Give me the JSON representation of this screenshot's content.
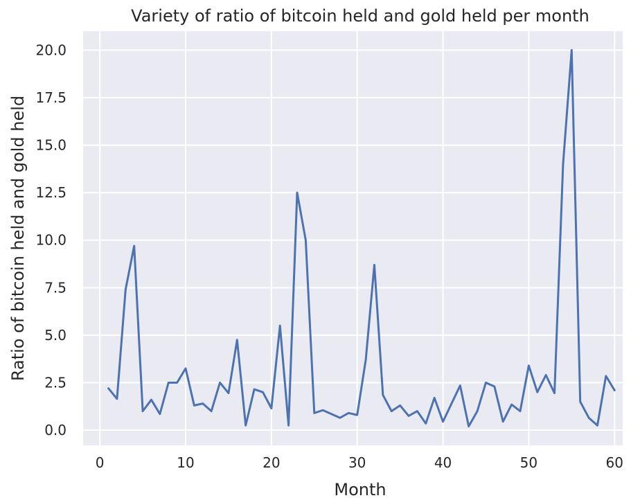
{
  "chart_data": {
    "type": "line",
    "title": "Variety of ratio of bitcoin held and gold held per month",
    "xlabel": "Month",
    "ylabel": "Ratio of bitcoin held and gold held",
    "xlim": [
      -1.95,
      60.95
    ],
    "ylim": [
      -0.8,
      21.0
    ],
    "xticks": [
      0,
      10,
      20,
      30,
      40,
      50,
      60
    ],
    "yticks": [
      0.0,
      2.5,
      5.0,
      7.5,
      10.0,
      12.5,
      15.0,
      17.5,
      20.0
    ],
    "xtick_labels": [
      "0",
      "10",
      "20",
      "30",
      "40",
      "50",
      "60"
    ],
    "ytick_labels": [
      "0.0",
      "2.5",
      "5.0",
      "7.5",
      "10.0",
      "12.5",
      "15.0",
      "17.5",
      "20.0"
    ],
    "grid": true,
    "background": "#eaeaf2",
    "line_color": "#4c72b0",
    "series": [
      {
        "x": [
          1,
          2,
          3,
          4,
          5,
          6,
          7,
          8,
          9,
          10,
          11,
          12,
          13,
          14,
          15,
          16,
          17,
          18,
          19,
          20,
          21,
          22,
          23,
          24,
          25,
          26,
          27,
          28,
          29,
          30,
          31,
          32,
          33,
          34,
          35,
          36,
          37,
          38,
          39,
          40,
          41,
          42,
          43,
          44,
          45,
          46,
          47,
          48,
          49,
          50,
          51,
          52,
          53,
          54,
          55,
          56,
          57,
          58,
          59,
          60
        ],
        "values": [
          2.2,
          1.65,
          7.4,
          9.7,
          1.0,
          1.6,
          0.85,
          2.5,
          2.5,
          3.25,
          1.3,
          1.4,
          1.0,
          2.5,
          1.95,
          4.75,
          0.25,
          2.15,
          2.0,
          1.15,
          5.5,
          0.25,
          12.5,
          10.0,
          0.9,
          1.05,
          0.85,
          0.65,
          0.9,
          0.8,
          3.7,
          8.7,
          1.85,
          1.0,
          1.3,
          0.75,
          1.0,
          0.35,
          1.7,
          0.45,
          1.4,
          2.35,
          0.2,
          1.0,
          2.5,
          2.3,
          0.45,
          1.35,
          1.0,
          3.4,
          2.0,
          2.9,
          1.95,
          14.0,
          20.0,
          1.5,
          0.65,
          0.25,
          2.85,
          2.1
        ]
      }
    ]
  }
}
